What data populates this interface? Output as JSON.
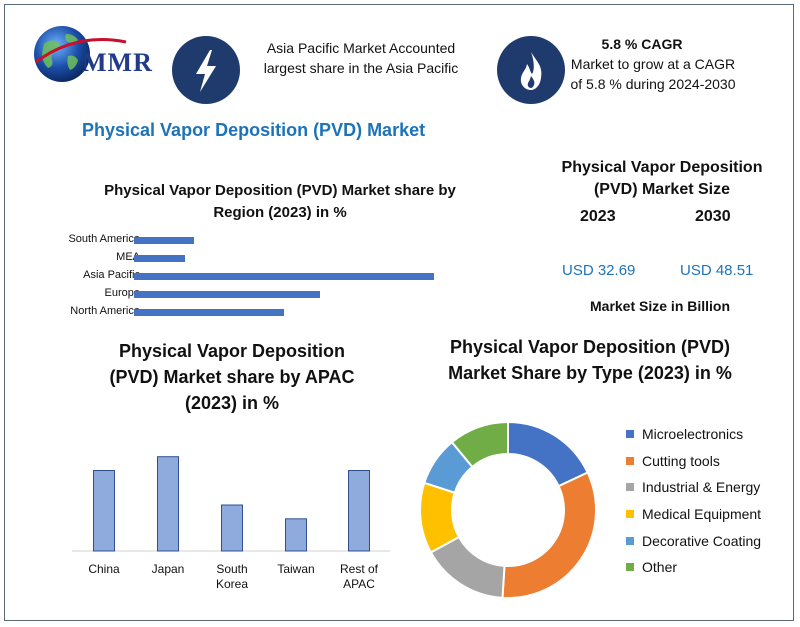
{
  "header": {
    "logo_text": "MMR",
    "item1_text": "Asia Pacific Market Accounted largest share in the Asia Pacific",
    "item2_title": "5.8 % CAGR",
    "item2_text": "Market to grow at a CAGR of 5.8 % during 2024-2030",
    "icon1": "lightning-icon",
    "icon2": "flame-icon"
  },
  "main_title": "Physical Vapor Deposition (PVD) Market",
  "market_size": {
    "title": "Physical Vapor Deposition (PVD) Market Size",
    "year_2023": "2023",
    "year_2030": "2030",
    "value_2023": "USD 32.69",
    "value_2030": "USD 48.51",
    "caption": "Market Size in Billion"
  },
  "colors": {
    "bar": "#4472c4",
    "apac_bar": "#8faadc",
    "accent": "#1e73b8",
    "icon_bg": "#1f3b6e"
  },
  "chart_data": [
    {
      "type": "bar",
      "orientation": "horizontal",
      "title": "Physical Vapor Deposition (PVD) Market share by Region (2023) in %",
      "categories": [
        "South America",
        "MEA",
        "Asia Pacific",
        "Europe",
        "North America"
      ],
      "values": [
        10,
        8.5,
        50,
        31,
        25
      ],
      "xlim": [
        0,
        60
      ],
      "grid": false,
      "legend": "none"
    },
    {
      "type": "bar",
      "title": "Physical Vapor Deposition (PVD) Market  share by APAC (2023) in %",
      "categories": [
        "China",
        "Japan",
        "South Korea",
        "Taiwan",
        "Rest of APAC"
      ],
      "values": [
        35,
        41,
        20,
        14,
        35
      ],
      "ylim": [
        0,
        50
      ],
      "grid": false,
      "legend": "none"
    },
    {
      "type": "pie",
      "donut": true,
      "title": "Physical Vapor Deposition (PVD) Market Share by Type (2023) in %",
      "categories": [
        "Microelectronics",
        "Cutting tools",
        "Industrial & Energy",
        "Medical Equipment",
        "Decorative Coating",
        "Other"
      ],
      "values": [
        18,
        33,
        16,
        13,
        9,
        11
      ],
      "colors": [
        "#4472c4",
        "#ed7d31",
        "#a5a5a5",
        "#ffc000",
        "#5b9bd5",
        "#70ad47"
      ],
      "legend": "right"
    }
  ]
}
